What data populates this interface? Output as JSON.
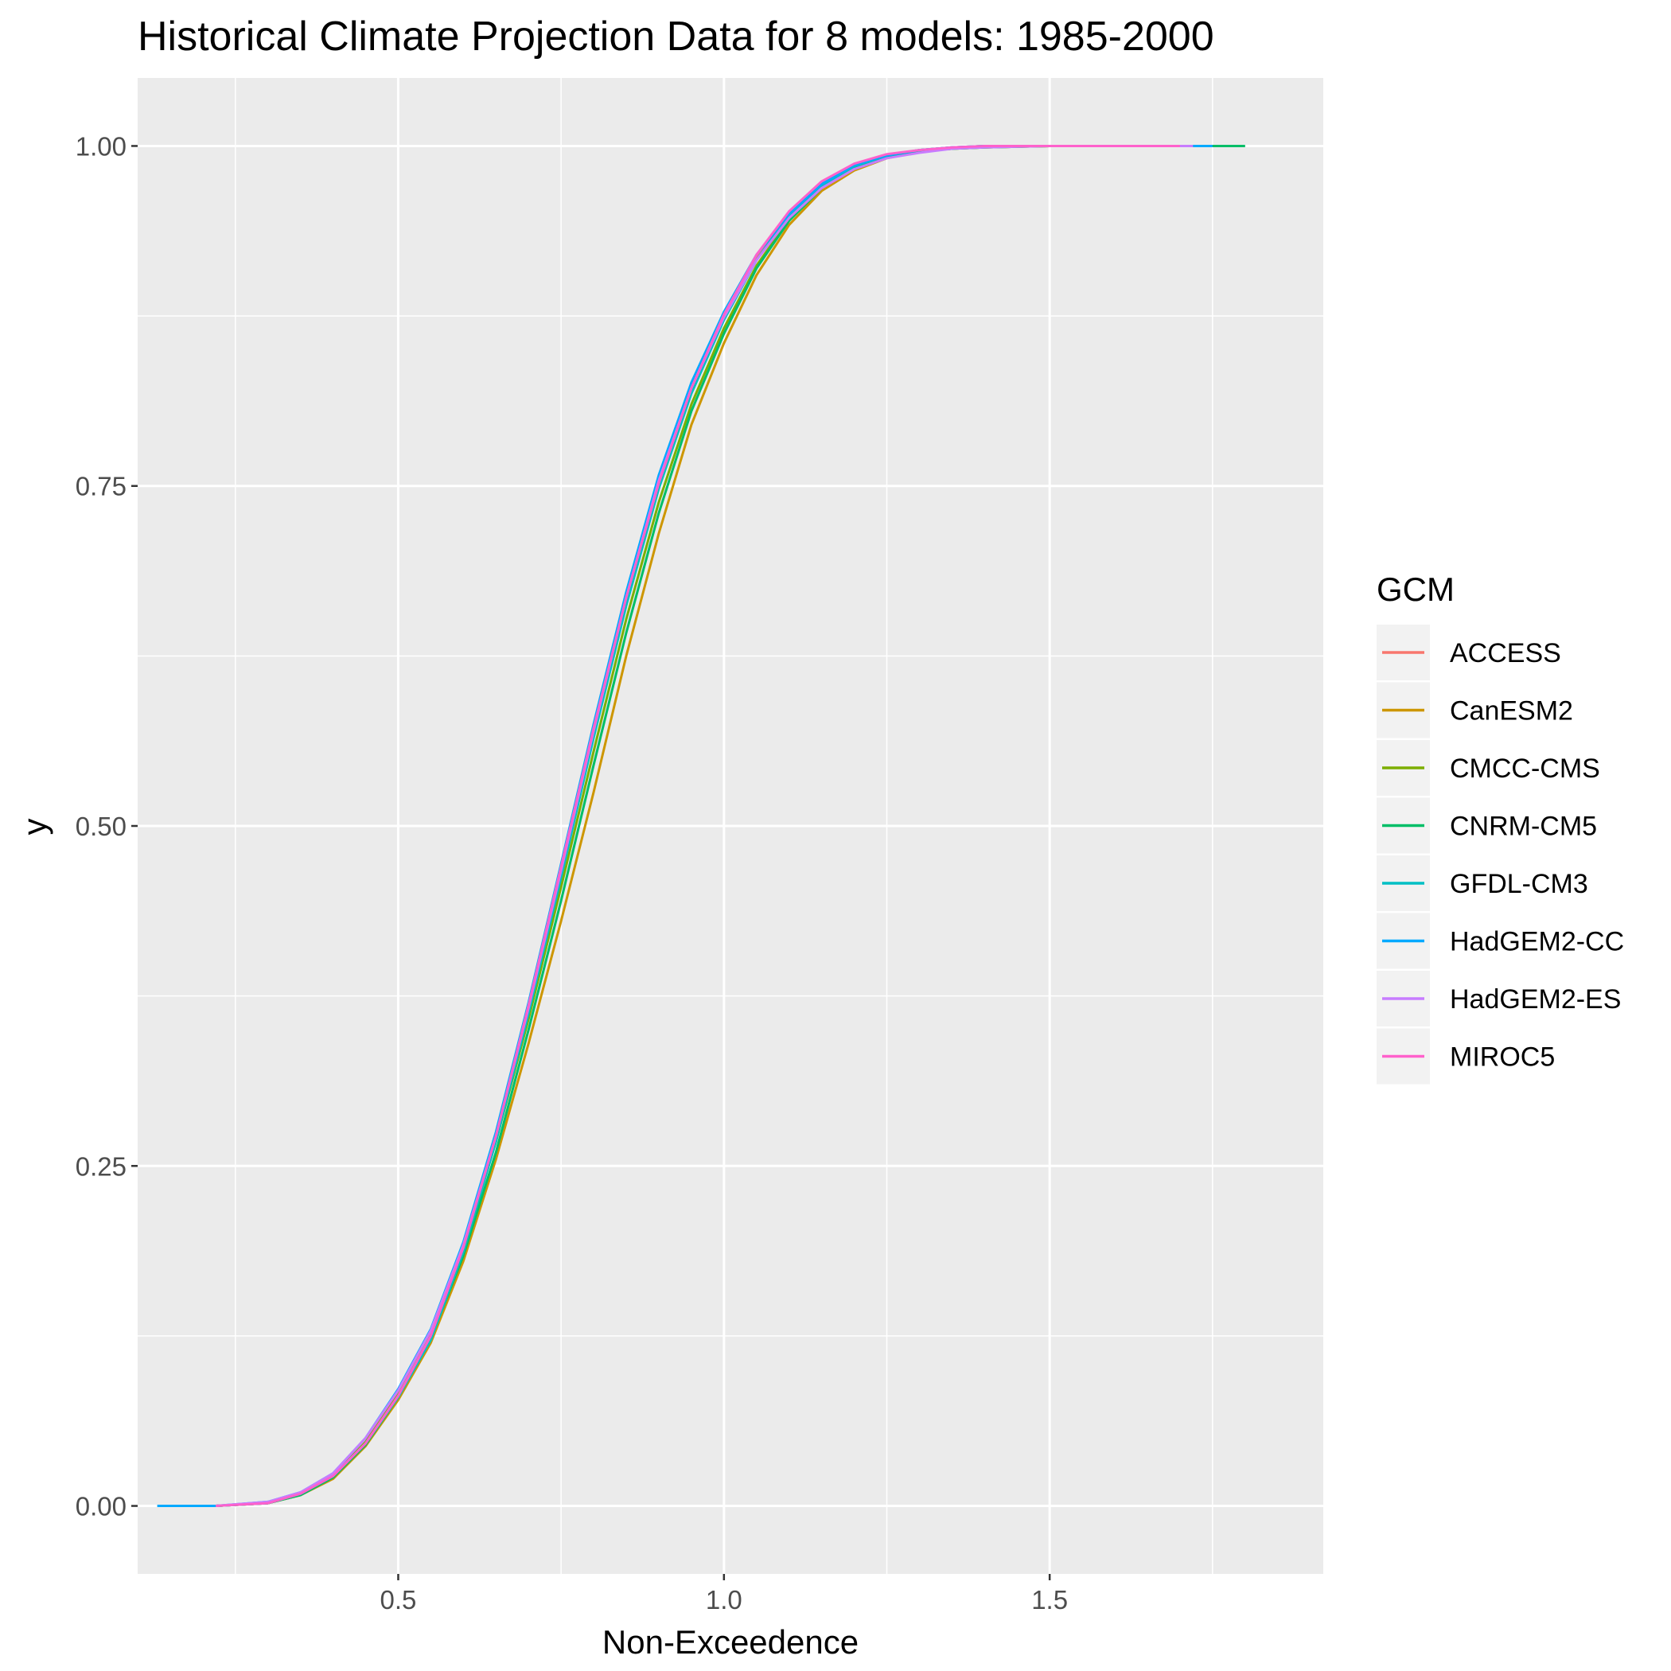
{
  "chart_data": {
    "type": "line",
    "title": "Historical Climate Projection Data for 8 models: 1985-2000",
    "xlabel": "Non-Exceedence",
    "ylabel": "y",
    "xlim": [
      0.1,
      1.92
    ],
    "ylim": [
      -0.05,
      1.05
    ],
    "x_ticks": [
      0.5,
      1.0,
      1.5
    ],
    "x_tick_labels": [
      "0.5",
      "1.0",
      "1.5"
    ],
    "y_ticks": [
      0,
      0.25,
      0.5,
      0.75,
      1.0
    ],
    "y_tick_labels": [
      "0.00",
      "0.25",
      "0.50",
      "0.75",
      "1.00"
    ],
    "grid": true,
    "legend_title": "GCM",
    "legend_position": "right",
    "series": [
      {
        "name": "ACCESS",
        "color": "#F8766D",
        "x": [
          0.22,
          0.3,
          0.35,
          0.4,
          0.45,
          0.5,
          0.55,
          0.6,
          0.65,
          0.7,
          0.75,
          0.8,
          0.85,
          0.9,
          0.95,
          1.0,
          1.05,
          1.1,
          1.15,
          1.2,
          1.25,
          1.3,
          1.35,
          1.4,
          1.5,
          1.6,
          1.7
        ],
        "y": [
          0.0,
          0.002,
          0.008,
          0.02,
          0.045,
          0.08,
          0.125,
          0.19,
          0.27,
          0.365,
          0.465,
          0.57,
          0.665,
          0.75,
          0.82,
          0.875,
          0.918,
          0.95,
          0.972,
          0.985,
          0.993,
          0.997,
          0.999,
          1.0,
          1.0,
          1.0,
          1.0
        ]
      },
      {
        "name": "CanESM2",
        "color": "#CD9600",
        "x": [
          0.22,
          0.3,
          0.35,
          0.4,
          0.45,
          0.5,
          0.55,
          0.6,
          0.65,
          0.7,
          0.75,
          0.8,
          0.85,
          0.9,
          0.95,
          1.0,
          1.05,
          1.1,
          1.15,
          1.2,
          1.25,
          1.3,
          1.35,
          1.4,
          1.5,
          1.6,
          1.7
        ],
        "y": [
          0.0,
          0.002,
          0.008,
          0.02,
          0.044,
          0.078,
          0.12,
          0.18,
          0.255,
          0.34,
          0.43,
          0.525,
          0.625,
          0.715,
          0.795,
          0.855,
          0.905,
          0.942,
          0.967,
          0.982,
          0.991,
          0.996,
          0.998,
          0.999,
          1.0,
          1.0,
          1.0
        ]
      },
      {
        "name": "CMCC-CMS",
        "color": "#7CAE00",
        "x": [
          0.22,
          0.3,
          0.35,
          0.4,
          0.45,
          0.5,
          0.55,
          0.6,
          0.65,
          0.7,
          0.75,
          0.8,
          0.85,
          0.9,
          0.95,
          1.0,
          1.05,
          1.1,
          1.15,
          1.2,
          1.25,
          1.3,
          1.35,
          1.4,
          1.5,
          1.6,
          1.7
        ],
        "y": [
          0.0,
          0.002,
          0.009,
          0.022,
          0.047,
          0.082,
          0.127,
          0.19,
          0.268,
          0.358,
          0.455,
          0.555,
          0.652,
          0.738,
          0.81,
          0.866,
          0.912,
          0.946,
          0.969,
          0.984,
          0.992,
          0.996,
          0.998,
          0.999,
          1.0,
          1.0,
          1.0
        ]
      },
      {
        "name": "CNRM-CM5",
        "color": "#00BE67",
        "x": [
          0.22,
          0.3,
          0.35,
          0.4,
          0.45,
          0.5,
          0.55,
          0.6,
          0.65,
          0.7,
          0.75,
          0.8,
          0.85,
          0.9,
          0.95,
          1.0,
          1.05,
          1.1,
          1.15,
          1.2,
          1.25,
          1.3,
          1.35,
          1.4,
          1.5,
          1.6,
          1.8
        ],
        "y": [
          0.0,
          0.002,
          0.008,
          0.021,
          0.045,
          0.08,
          0.123,
          0.184,
          0.26,
          0.35,
          0.445,
          0.545,
          0.642,
          0.73,
          0.805,
          0.862,
          0.91,
          0.945,
          0.969,
          0.984,
          0.992,
          0.996,
          0.998,
          0.999,
          1.0,
          1.0,
          1.0
        ]
      },
      {
        "name": "GFDL-CM3",
        "color": "#00BFC4",
        "x": [
          0.22,
          0.3,
          0.35,
          0.4,
          0.45,
          0.5,
          0.55,
          0.6,
          0.65,
          0.7,
          0.75,
          0.8,
          0.85,
          0.9,
          0.95,
          1.0,
          1.05,
          1.1,
          1.15,
          1.2,
          1.25,
          1.3,
          1.35,
          1.4,
          1.5,
          1.6,
          1.7
        ],
        "y": [
          0.0,
          0.002,
          0.009,
          0.022,
          0.046,
          0.08,
          0.122,
          0.187,
          0.268,
          0.362,
          0.462,
          0.565,
          0.662,
          0.748,
          0.818,
          0.872,
          0.916,
          0.949,
          0.971,
          0.985,
          0.993,
          0.997,
          0.999,
          1.0,
          1.0,
          1.0,
          1.0
        ]
      },
      {
        "name": "HadGEM2-CC",
        "color": "#00A9FF",
        "x": [
          0.13,
          0.22,
          0.3,
          0.35,
          0.4,
          0.45,
          0.5,
          0.55,
          0.6,
          0.65,
          0.7,
          0.75,
          0.8,
          0.85,
          0.9,
          0.95,
          1.0,
          1.05,
          1.1,
          1.15,
          1.2,
          1.25,
          1.3,
          1.35,
          1.4,
          1.5,
          1.6,
          1.75
        ],
        "y": [
          0.0,
          0.0,
          0.003,
          0.01,
          0.024,
          0.05,
          0.086,
          0.13,
          0.194,
          0.275,
          0.37,
          0.472,
          0.575,
          0.672,
          0.758,
          0.826,
          0.878,
          0.92,
          0.95,
          0.972,
          0.986,
          0.993,
          0.997,
          0.999,
          1.0,
          1.0,
          1.0,
          1.0
        ]
      },
      {
        "name": "HadGEM2-ES",
        "color": "#C77CFF",
        "x": [
          0.22,
          0.3,
          0.35,
          0.4,
          0.45,
          0.5,
          0.55,
          0.6,
          0.65,
          0.7,
          0.75,
          0.8,
          0.85,
          0.9,
          0.95,
          1.0,
          1.05,
          1.1,
          1.15,
          1.2,
          1.25,
          1.3,
          1.35,
          1.4,
          1.5,
          1.6,
          1.72
        ],
        "y": [
          0.0,
          0.003,
          0.01,
          0.024,
          0.05,
          0.085,
          0.129,
          0.192,
          0.272,
          0.366,
          0.467,
          0.57,
          0.668,
          0.754,
          0.822,
          0.874,
          0.916,
          0.947,
          0.969,
          0.983,
          0.991,
          0.995,
          0.998,
          0.999,
          1.0,
          1.0,
          1.0
        ]
      },
      {
        "name": "MIROC5",
        "color": "#FF61CC",
        "x": [
          0.22,
          0.3,
          0.35,
          0.4,
          0.45,
          0.5,
          0.55,
          0.6,
          0.65,
          0.7,
          0.75,
          0.8,
          0.85,
          0.9,
          0.95,
          1.0,
          1.05,
          1.1,
          1.15,
          1.2,
          1.25,
          1.3,
          1.35,
          1.4,
          1.5,
          1.6,
          1.7
        ],
        "y": [
          0.0,
          0.002,
          0.009,
          0.022,
          0.046,
          0.081,
          0.125,
          0.19,
          0.272,
          0.368,
          0.47,
          0.572,
          0.668,
          0.752,
          0.822,
          0.876,
          0.92,
          0.952,
          0.974,
          0.987,
          0.994,
          0.997,
          0.999,
          1.0,
          1.0,
          1.0,
          1.0
        ]
      }
    ]
  }
}
